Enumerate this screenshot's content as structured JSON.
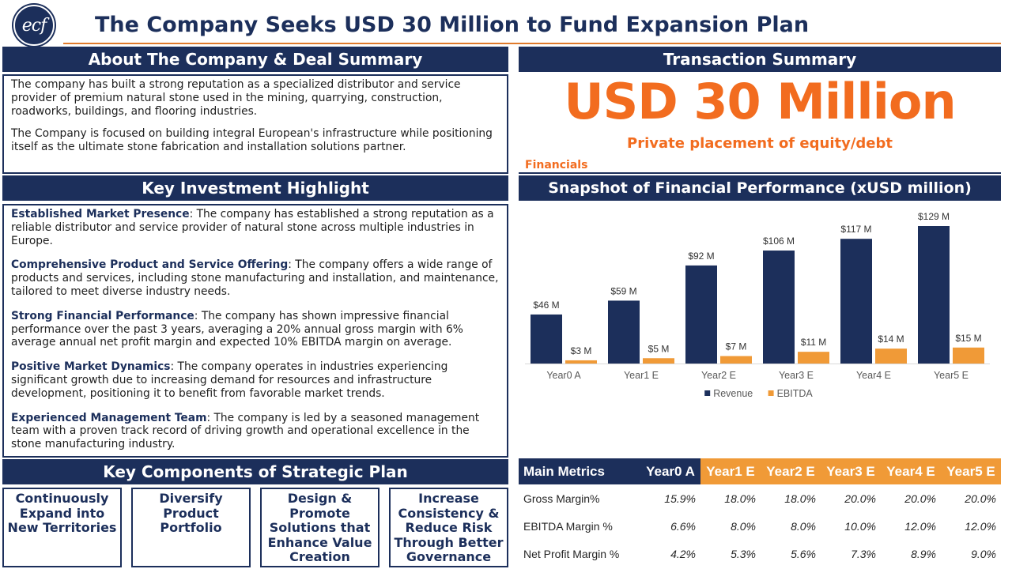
{
  "header": {
    "logo_text": "ecf",
    "title": "The Company Seeks USD 30 Million to Fund Expansion Plan"
  },
  "about": {
    "heading": "About The Company & Deal Summary",
    "paragraphs": [
      "The company has built a strong reputation as a specialized distributor and service provider of premium natural stone used in the mining, quarrying, construction, roadworks, buildings, and flooring industries.",
      "The Company is focused on building integral European's infrastructure while positioning itself as the ultimate stone fabrication and installation solutions partner."
    ]
  },
  "highlights": {
    "heading": "Key Investment Highlight",
    "items": [
      {
        "title": "Established Market Presence",
        "text": ": The company has established a strong reputation as a reliable distributor and service provider of natural stone across multiple industries in Europe."
      },
      {
        "title": "Comprehensive Product and Service Offering",
        "text": ": The company offers a wide range of products and services, including stone manufacturing and installation, and maintenance, tailored to meet diverse industry needs."
      },
      {
        "title": "Strong Financial Performance",
        "text": ": The company has shown impressive financial performance over the past 3 years, averaging a 20% annual gross margin with 6% average annual net profit margin and expected 10% EBITDA margin on average."
      },
      {
        "title": "Positive Market Dynamics",
        "text": ": The company operates in industries experiencing significant growth due to increasing demand for resources and infrastructure development, positioning it to benefit from favorable market trends."
      },
      {
        "title": "Experienced Management Team",
        "text": ": The company is led by a seasoned management team with a proven track record of driving growth and operational excellence in the stone manufacturing industry."
      }
    ]
  },
  "strategic_plan": {
    "heading": "Key Components of Strategic Plan",
    "items": [
      "Continuously Expand into New Territories",
      "Diversify Product Portfolio",
      "Design & Promote Solutions that Enhance Value Creation",
      "Increase Consistency & Reduce Risk Through Better Governance"
    ]
  },
  "transaction": {
    "heading": "Transaction Summary",
    "amount": "USD 30 Million",
    "type": "Private placement of equity/debt",
    "financials_label": "Financials"
  },
  "chart_heading": "Snapshot of Financial Performance (xUSD million)",
  "chart_data": {
    "type": "bar",
    "categories": [
      "Year0 A",
      "Year1 E",
      "Year2 E",
      "Year3 E",
      "Year4 E",
      "Year5 E"
    ],
    "series": [
      {
        "name": "Revenue",
        "values": [
          46,
          59,
          92,
          106,
          117,
          129
        ],
        "labels": [
          "$46 M",
          "$59 M",
          "$92 M",
          "$106 M",
          "$117 M",
          "$129 M"
        ],
        "color": "#1c2f5b"
      },
      {
        "name": "EBITDA",
        "values": [
          3,
          5,
          7,
          11,
          14,
          15
        ],
        "labels": [
          "$3 M",
          "$5 M",
          "$7 M",
          "$11 M",
          "$14 M",
          "$15 M"
        ],
        "color": "#f09a37"
      }
    ],
    "legend_position": "bottom",
    "grid": false
  },
  "metrics": {
    "header": [
      "Main Metrics",
      "Year0 A",
      "Year1 E",
      "Year2 E",
      "Year3 E",
      "Year4 E",
      "Year5 E"
    ],
    "rows": [
      {
        "label": "Gross Margin%",
        "values": [
          "15.9%",
          "18.0%",
          "18.0%",
          "20.0%",
          "20.0%",
          "20.0%"
        ]
      },
      {
        "label": "EBITDA Margin %",
        "values": [
          "6.6%",
          "8.0%",
          "8.0%",
          "10.0%",
          "12.0%",
          "12.0%"
        ]
      },
      {
        "label": "Net Profit Margin %",
        "values": [
          "4.2%",
          "5.3%",
          "5.6%",
          "7.3%",
          "8.9%",
          "9.0%"
        ]
      }
    ]
  },
  "colors": {
    "navy": "#1c2f5b",
    "orange": "#f26c1f",
    "light_orange": "#f09a37"
  }
}
